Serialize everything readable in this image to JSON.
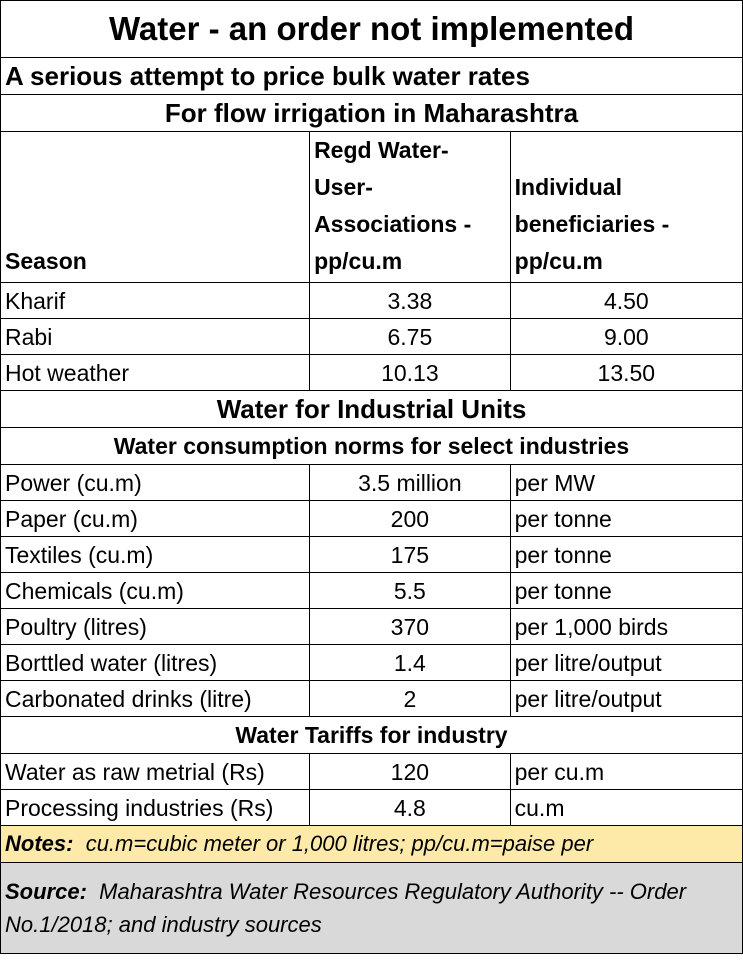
{
  "title": "Water - an order not implemented",
  "subtitle": "A serious attempt to price bulk water rates",
  "irrigation": {
    "heading": "For flow irrigation in Maharashtra",
    "col_season": "Season",
    "col_wua": "Regd Water-User-Associations - pp/cu.m",
    "col_individual": "Individual beneficiaries - pp/cu.m",
    "rows": [
      {
        "season": "Kharif",
        "wua": "3.38",
        "individual": "4.50"
      },
      {
        "season": "Rabi",
        "wua": "6.75",
        "individual": "9.00"
      },
      {
        "season": "Hot weather",
        "wua": "10.13",
        "individual": "13.50"
      }
    ]
  },
  "industrial": {
    "heading": "Water for Industrial Units",
    "norms_heading": "Water consumption norms for select industries",
    "norms": [
      {
        "industry": "Power (cu.m)",
        "value": "3.5 million",
        "unit": "per MW"
      },
      {
        "industry": "Paper (cu.m)",
        "value": "200",
        "unit": "per tonne"
      },
      {
        "industry": "Textiles (cu.m)",
        "value": "175",
        "unit": "per tonne"
      },
      {
        "industry": "Chemicals (cu.m)",
        "value": "5.5",
        "unit": "per tonne"
      },
      {
        "industry": "Poultry (litres)",
        "value": "370",
        "unit": "per 1,000 birds"
      },
      {
        "industry": "Borttled water (litres)",
        "value": "1.4",
        "unit": "per litre/output"
      },
      {
        "industry": "Carbonated drinks (litre)",
        "value": "2",
        "unit": "per litre/output"
      }
    ],
    "tariffs_heading": "Water Tariffs for industry",
    "tariffs": [
      {
        "industry": "Water as raw metrial (Rs)",
        "value": "120",
        "unit": "per cu.m"
      },
      {
        "industry": "Processing industries (Rs)",
        "value": "4.8",
        "unit": "cu.m"
      }
    ]
  },
  "notes": {
    "label": "Notes:",
    "text": "cu.m=cubic meter or 1,000 litres; pp/cu.m=paise per"
  },
  "source": {
    "label": "Source:",
    "text": "Maharashtra Water Resources Regulatory Authority -- Order No.1/2018; and industry sources"
  },
  "colors": {
    "notes_bg": "#fde9a8",
    "source_bg": "#d9d9d9"
  }
}
